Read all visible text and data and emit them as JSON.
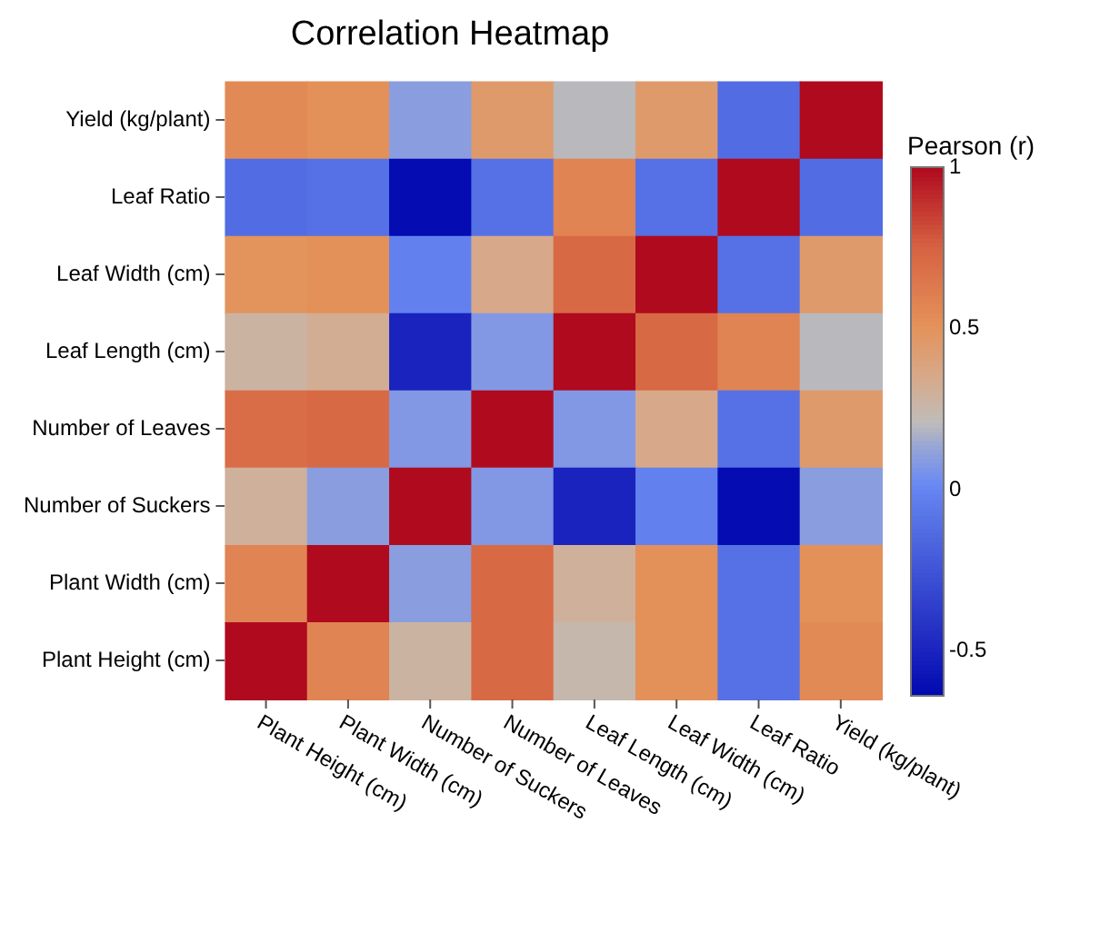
{
  "chart_data": {
    "type": "heatmap",
    "title": "Correlation Heatmap",
    "clabel": "Pearson (r)",
    "categories": [
      "Plant Height (cm)",
      "Plant Width (cm)",
      "Number of Suckers",
      "Number of Leaves",
      "Leaf Length (cm)",
      "Leaf Width (cm)",
      "Leaf Ratio",
      "Yield (kg/plant)"
    ],
    "y_categories": [
      "Yield (kg/plant)",
      "Leaf Ratio",
      "Leaf Width (cm)",
      "Leaf Length (cm)",
      "Number of Leaves",
      "Number of Suckers",
      "Plant Width (cm)",
      "Plant Height (cm)"
    ],
    "cells": [
      [
        0.55,
        0.52,
        0.1,
        0.45,
        0.2,
        0.45,
        -0.12,
        1
      ],
      [
        -0.12,
        -0.1,
        -0.62,
        -0.1,
        0.58,
        -0.1,
        1,
        -0.12
      ],
      [
        0.5,
        0.52,
        -0.02,
        0.35,
        0.72,
        1,
        -0.1,
        0.45
      ],
      [
        0.28,
        0.32,
        -0.5,
        0.08,
        1,
        0.72,
        0.58,
        0.2
      ],
      [
        0.7,
        0.72,
        0.08,
        1,
        0.08,
        0.35,
        -0.1,
        0.45
      ],
      [
        0.3,
        0.1,
        1,
        0.08,
        -0.5,
        -0.02,
        -0.62,
        0.1
      ],
      [
        0.58,
        1,
        0.1,
        0.72,
        0.3,
        0.52,
        -0.1,
        0.52
      ],
      [
        1,
        0.58,
        0.28,
        0.72,
        0.25,
        0.52,
        -0.1,
        0.55
      ]
    ],
    "clim": [
      -0.64,
      1
    ],
    "cticks": [
      -0.5,
      0,
      0.5,
      1
    ]
  }
}
